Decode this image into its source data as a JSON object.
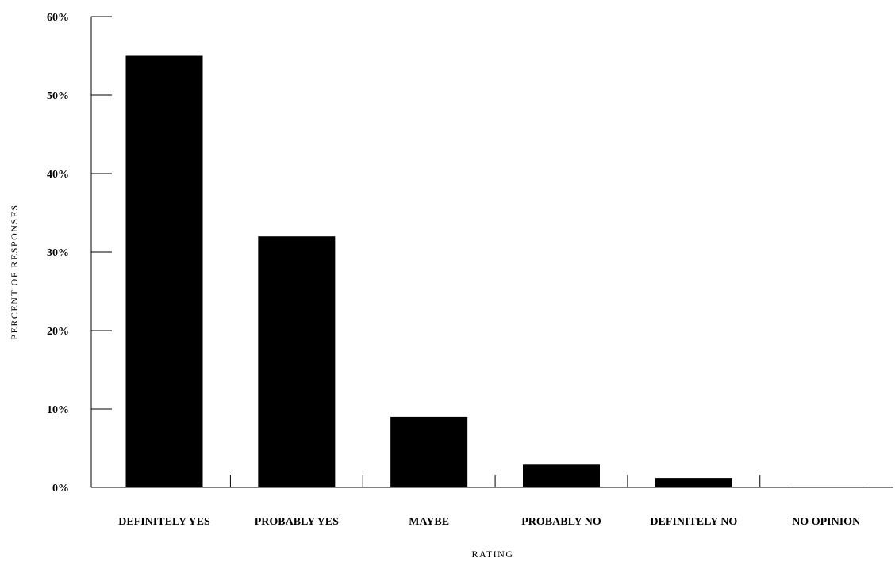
{
  "chart_data": {
    "type": "bar",
    "categories": [
      "DEFINITELY YES",
      "PROBABLY YES",
      "MAYBE",
      "PROBABLY NO",
      "DEFINITELY NO",
      "NO OPINION"
    ],
    "values": [
      55,
      32,
      9,
      3,
      1.2,
      0.1
    ],
    "value_format": "%",
    "title": "",
    "xlabel": "RATING",
    "ylabel": "PERCENT OF RESPONSES",
    "ylim": [
      0,
      60
    ],
    "yticks": [
      0,
      10,
      20,
      30,
      40,
      50,
      60
    ],
    "ytick_labels": [
      "0%",
      "10%",
      "20%",
      "30%",
      "40%",
      "50%",
      "60%"
    ],
    "grid": false,
    "legend": "none",
    "bar_color": "#000000"
  }
}
